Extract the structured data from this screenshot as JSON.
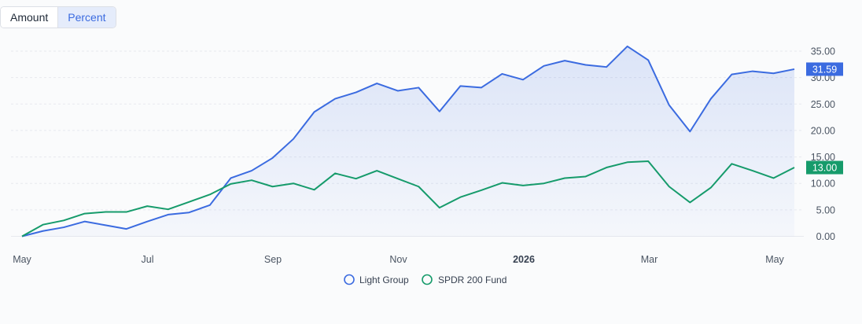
{
  "toggle": {
    "amount_label": "Amount",
    "percent_label": "Percent",
    "selected": "Percent"
  },
  "chart_data": {
    "type": "line",
    "y_ticks": [
      "35.00",
      "30.00",
      "25.00",
      "20.00",
      "15.00",
      "10.00",
      "5.00",
      "0.00"
    ],
    "y_tick_values": [
      35,
      30,
      25,
      20,
      15,
      10,
      5,
      0
    ],
    "ylim": [
      0,
      35
    ],
    "x_ticks": [
      {
        "label": "May",
        "bold": false
      },
      {
        "label": "Jul",
        "bold": false
      },
      {
        "label": "Sep",
        "bold": false
      },
      {
        "label": "Nov",
        "bold": false
      },
      {
        "label": "2026",
        "bold": true
      },
      {
        "label": "Mar",
        "bold": false
      },
      {
        "label": "May",
        "bold": false
      }
    ],
    "grid": true,
    "legend_position": "bottom",
    "series": [
      {
        "name": "Light Group",
        "color": "#3b6be0",
        "area": true,
        "end_label": "31.59",
        "values": [
          0,
          1.0,
          1.7,
          2.8,
          2.1,
          1.4,
          2.8,
          4.1,
          4.5,
          5.9,
          11.0,
          12.4,
          14.8,
          18.4,
          23.5,
          26.0,
          27.2,
          28.9,
          27.5,
          28.1,
          23.6,
          28.4,
          28.1,
          30.7,
          29.6,
          32.2,
          33.2,
          32.4,
          32.0,
          35.9,
          33.3,
          24.8,
          19.8,
          26.0,
          30.6,
          31.2,
          30.8,
          31.59
        ]
      },
      {
        "name": "SPDR 200 Fund",
        "color": "#169b6b",
        "area": false,
        "end_label": "13.00",
        "values": [
          0,
          2.2,
          3.0,
          4.3,
          4.6,
          4.6,
          5.7,
          5.1,
          6.5,
          7.9,
          9.9,
          10.6,
          9.4,
          10.0,
          8.8,
          11.9,
          10.9,
          12.4,
          10.9,
          9.4,
          5.4,
          7.4,
          8.7,
          10.1,
          9.6,
          10.0,
          11.0,
          11.3,
          13.0,
          14.0,
          14.2,
          9.4,
          6.4,
          9.2,
          13.7,
          12.4,
          11.0,
          13.0
        ]
      }
    ]
  }
}
